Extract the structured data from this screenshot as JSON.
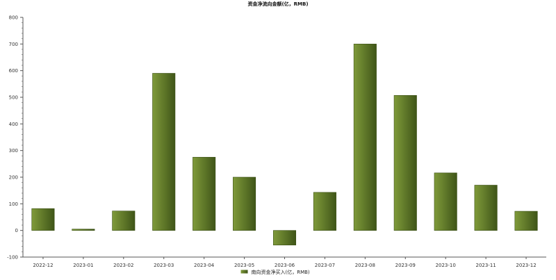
{
  "chart_data": {
    "type": "bar",
    "title": "资金净流向金额(亿，RMB)",
    "categories": [
      "2022-12",
      "2023-01",
      "2023-02",
      "2023-03",
      "2023-04",
      "2023-05",
      "2023-06",
      "2023-07",
      "2023-08",
      "2023-09",
      "2023-10",
      "2023-11",
      "2023-12"
    ],
    "series": [
      {
        "name": "南向资金净买入(亿，RMB)",
        "values": [
          82,
          5,
          73,
          590,
          275,
          200,
          -55,
          143,
          700,
          507,
          216,
          170,
          72
        ],
        "color": "#6b8a2e"
      }
    ],
    "ylim": [
      -100,
      800
    ],
    "yticks": [
      -100,
      0,
      100,
      200,
      300,
      400,
      500,
      600,
      700,
      800
    ],
    "legend": "bottom",
    "grid": false
  }
}
